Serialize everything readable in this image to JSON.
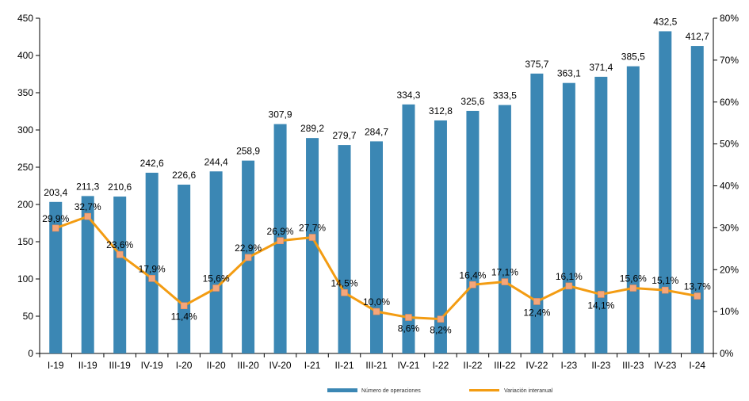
{
  "chart_data": {
    "type": "bar+line",
    "categories": [
      "I-19",
      "II-19",
      "III-19",
      "IV-19",
      "I-20",
      "II-20",
      "III-20",
      "IV-20",
      "I-21",
      "II-21",
      "III-21",
      "IV-21",
      "I-22",
      "II-22",
      "III-22",
      "IV-22",
      "I-23",
      "II-23",
      "III-23",
      "IV-23",
      "I-24"
    ],
    "series": [
      {
        "name": "Número de operaciones",
        "type": "bar",
        "axis": "left",
        "color": "#3b87b4",
        "values": [
          203.4,
          211.3,
          210.6,
          242.6,
          226.6,
          244.4,
          258.9,
          307.9,
          289.2,
          279.7,
          284.7,
          334.3,
          312.8,
          325.6,
          333.5,
          375.7,
          363.1,
          371.4,
          385.5,
          432.5,
          412.7
        ],
        "labels": [
          "203,4",
          "211,3",
          "210,6",
          "242,6",
          "226,6",
          "244,4",
          "258,9",
          "307,9",
          "289,2",
          "279,7",
          "284,7",
          "334,3",
          "312,8",
          "325,6",
          "333,5",
          "375,7",
          "363,1",
          "371,4",
          "385,5",
          "432,5",
          "412,7"
        ]
      },
      {
        "name": "Variación interanual",
        "type": "line",
        "axis": "right",
        "color": "#f39c12",
        "marker_color": "#f5a67a",
        "values": [
          29.9,
          32.7,
          23.6,
          17.9,
          11.4,
          15.6,
          22.9,
          26.9,
          27.7,
          14.5,
          10.0,
          8.6,
          8.2,
          16.4,
          17.1,
          12.4,
          16.1,
          14.1,
          15.6,
          15.1,
          13.7
        ],
        "labels": [
          "29,9%",
          "32,7%",
          "23,6%",
          "17,9%",
          "11,4%",
          "15,6%",
          "22,9%",
          "26,9%",
          "27,7%",
          "14,5%",
          "10,0%",
          "8,6%",
          "8,2%",
          "16,4%",
          "17,1%",
          "12,4%",
          "16,1%",
          "14,1%",
          "15,6%",
          "15,1%",
          "13,7%"
        ]
      }
    ],
    "y_left": {
      "min": 0,
      "max": 450,
      "ticks": [
        "0",
        "50",
        "100",
        "150",
        "200",
        "250",
        "300",
        "350",
        "400",
        "450"
      ]
    },
    "y_right": {
      "min": 0,
      "max": 80,
      "ticks": [
        "0%",
        "10%",
        "20%",
        "30%",
        "40%",
        "50%",
        "60%",
        "70%",
        "80%"
      ]
    },
    "legend": {
      "placement": "bottom",
      "items": [
        "Número de operaciones",
        "Variación interanual"
      ]
    },
    "grid": false
  }
}
